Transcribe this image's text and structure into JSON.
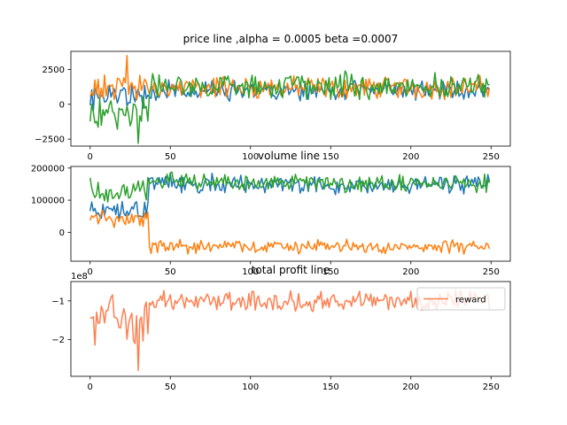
{
  "chart_data": [
    {
      "type": "line",
      "title": "price line ,alpha = 0.0005 beta =0.0007",
      "xlim": [
        -12,
        262
      ],
      "ylim": [
        -3000,
        3800
      ],
      "xticks": [
        0,
        50,
        100,
        150,
        200,
        250
      ],
      "yticks": [
        -2500,
        0,
        2500
      ],
      "x_count": 250,
      "series": [
        {
          "color": "#1f77b4",
          "mean": 1000,
          "amp": 600,
          "start_mean": 600,
          "start_amp": 800,
          "seed": 11,
          "spike_index": 33,
          "spike_value": -300
        },
        {
          "color": "#ff7f0e",
          "mean": 1200,
          "amp": 700,
          "start_mean": 1200,
          "start_amp": 800,
          "seed": 23,
          "spike_index": 23,
          "spike_value": 3500
        },
        {
          "color": "#2ca02c",
          "mean": 1300,
          "amp": 800,
          "start_mean": -600,
          "start_amp": 1200,
          "seed": 37,
          "spike_index": 30,
          "spike_value": -2800
        }
      ]
    },
    {
      "type": "line",
      "title": "volume line",
      "xlim": [
        -12,
        262
      ],
      "ylim": [
        -90000,
        205000
      ],
      "xticks": [
        0,
        50,
        100,
        150,
        200,
        250
      ],
      "yticks": [
        0,
        100000,
        200000
      ],
      "x_count": 250,
      "series": [
        {
          "color": "#1f77b4",
          "mean": 150000,
          "amp": 25000,
          "start_mean": 70000,
          "start_amp": 25000,
          "seed": 5,
          "spike_index": -1,
          "spike_value": 0
        },
        {
          "color": "#ff7f0e",
          "mean": -45000,
          "amp": 18000,
          "start_mean": 40000,
          "start_amp": 25000,
          "seed": 17,
          "spike_index": -1,
          "spike_value": 0
        },
        {
          "color": "#2ca02c",
          "mean": 155000,
          "amp": 25000,
          "start_mean": 130000,
          "start_amp": 30000,
          "seed": 29,
          "spike_index": -1,
          "spike_value": 0
        }
      ]
    },
    {
      "type": "line",
      "title": "total profit line",
      "offset_text": "1e8",
      "xlim": [
        -12,
        262
      ],
      "ylim": [
        -2.95,
        -0.5
      ],
      "xticks": [
        0,
        50,
        100,
        150,
        200,
        250
      ],
      "yticks": [
        -2,
        -1
      ],
      "x_count": 250,
      "legend": {
        "position": "top-right",
        "entries": [
          "reward"
        ]
      },
      "series": [
        {
          "name": "reward",
          "color": "#ff7f50",
          "mean": -1.0,
          "amp": 0.22,
          "start_mean": -1.4,
          "start_amp": 0.6,
          "seed": 41,
          "spike_index": 30,
          "spike_value": -2.8
        }
      ]
    }
  ]
}
